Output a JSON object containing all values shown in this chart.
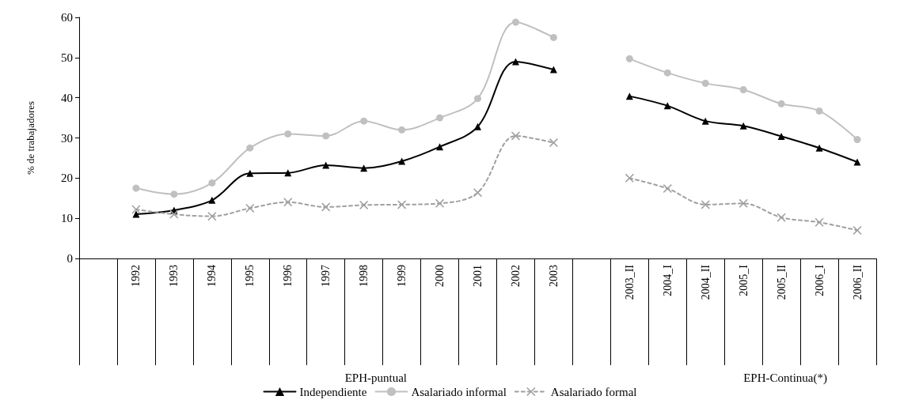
{
  "chart_data": {
    "type": "line",
    "ylabel": "% de trabajadores",
    "categories": [
      null,
      "1992",
      "1993",
      "1994",
      "1995",
      "1996",
      "1997",
      "1998",
      "1999",
      "2000",
      "2001",
      "2002",
      "2003",
      null,
      "2003_II",
      "2004_I",
      "2004_II",
      "2005_I",
      "2005_II",
      "2006_I",
      "2006_II"
    ],
    "series": [
      {
        "name": "Independiente",
        "color": "#000000",
        "marker": "triangle",
        "line_style": "solid",
        "values": [
          null,
          11,
          12,
          14.5,
          21.2,
          21.3,
          23.2,
          22.5,
          24.2,
          27.8,
          32.8,
          49,
          47,
          null,
          40.4,
          38,
          34.2,
          33,
          30.4,
          27.5,
          24
        ]
      },
      {
        "name": "Asalariado informal",
        "color": "#c0c0c0",
        "marker": "circle",
        "line_style": "solid",
        "values": [
          null,
          17.5,
          16,
          18.8,
          27.5,
          31,
          30.5,
          34.2,
          32,
          35,
          39.8,
          58.8,
          55,
          null,
          49.7,
          46.2,
          43.6,
          42,
          38.5,
          36.7,
          29.6
        ]
      },
      {
        "name": "Asalariado formal",
        "color": "#a0a0a0",
        "marker": "cross",
        "line_style": "dashed",
        "values": [
          null,
          12.2,
          11,
          10.5,
          12.5,
          14,
          12.8,
          13.3,
          13.4,
          13.7,
          16.4,
          30.5,
          28.8,
          null,
          20,
          17.4,
          13.4,
          13.7,
          10.2,
          9,
          7
        ]
      }
    ],
    "ylim": [
      0,
      60
    ],
    "yticks": [
      0,
      10,
      20,
      30,
      40,
      50,
      60
    ],
    "grid": false,
    "legend": "bottom",
    "annotations": [
      "EPH-puntual",
      "EPH-Continua(*)"
    ]
  }
}
